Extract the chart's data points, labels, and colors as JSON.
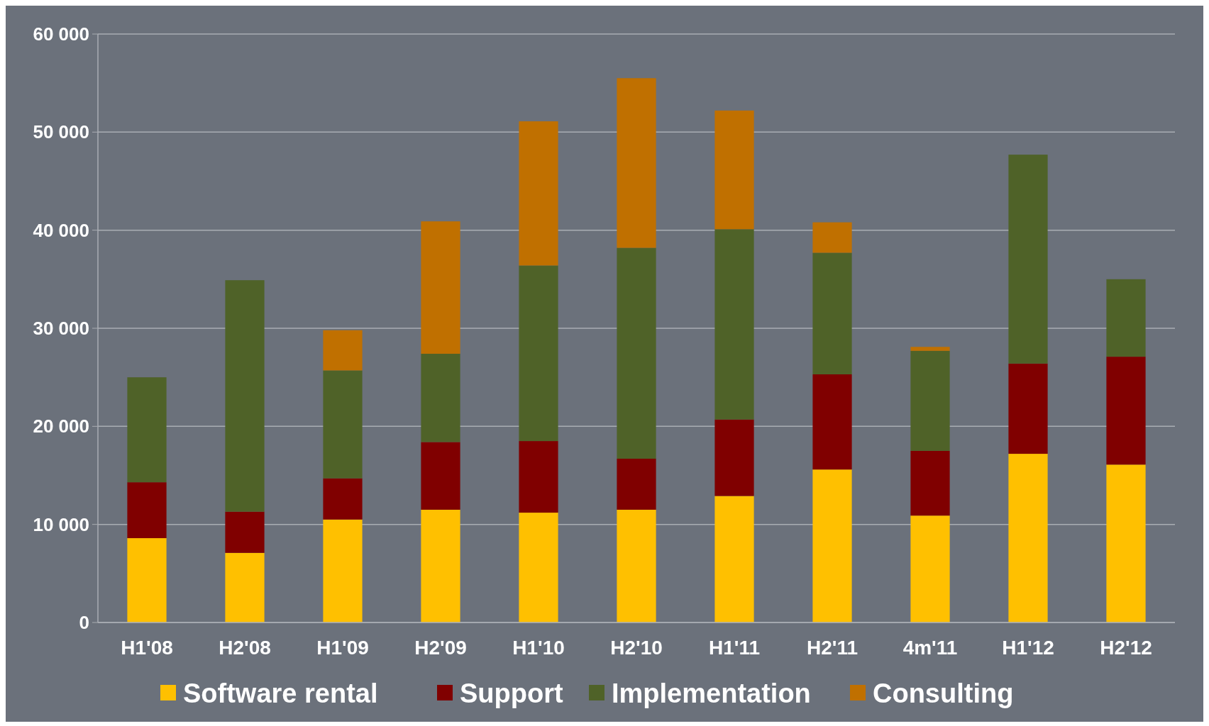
{
  "chart_data": {
    "type": "bar",
    "stacked": true,
    "categories": [
      "H1'08",
      "H2'08",
      "H1'09",
      "H2'09",
      "H1'10",
      "H2'10",
      "H1'11",
      "H2'11",
      "4m'11",
      "H1'12",
      "H2'12"
    ],
    "series": [
      {
        "name": "Software rental",
        "color": "#ffc000",
        "values": [
          8600,
          7100,
          10500,
          11500,
          11200,
          11500,
          12900,
          15600,
          10900,
          17200,
          16100
        ]
      },
      {
        "name": "Support",
        "color": "#800000",
        "values": [
          5700,
          4200,
          4200,
          6900,
          7300,
          5200,
          7800,
          9700,
          6600,
          9200,
          11000
        ]
      },
      {
        "name": "Implementation",
        "color": "#4f6228",
        "values": [
          10700,
          23600,
          11000,
          9000,
          17900,
          21500,
          19400,
          12400,
          10200,
          21300,
          7900
        ]
      },
      {
        "name": "Consulting",
        "color": "#c07000",
        "values": [
          null,
          null,
          4100,
          13500,
          14700,
          17300,
          12100,
          3100,
          400,
          null,
          null
        ]
      }
    ],
    "ylim": [
      0,
      60000
    ],
    "yticks": [
      {
        "value": 0,
        "label": "0"
      },
      {
        "value": 10000,
        "label": "10 000"
      },
      {
        "value": 20000,
        "label": "20 000"
      },
      {
        "value": 30000,
        "label": "30 000"
      },
      {
        "value": 40000,
        "label": "40 000"
      },
      {
        "value": 50000,
        "label": "50 000"
      },
      {
        "value": 60000,
        "label": "60 000"
      }
    ],
    "grid": "y",
    "legend": "bottom"
  }
}
